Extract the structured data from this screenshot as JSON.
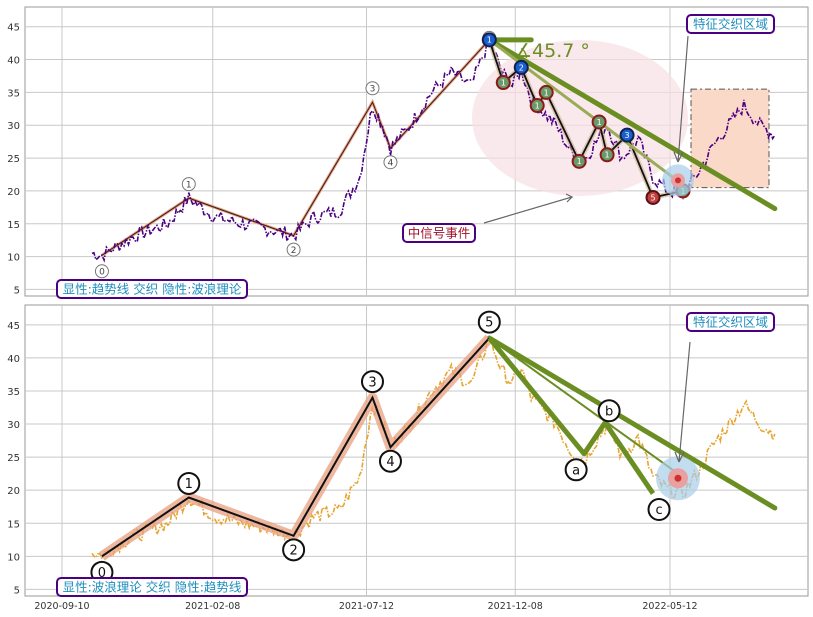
{
  "colors": {
    "grid": "#c8c8c8",
    "panel_border": "#9a9a9a",
    "top_price": "#4b0082",
    "bottom_price": "#e6a532",
    "wave_line": "#1a1a1a",
    "wave_glow": "#e8a080",
    "trend_green": "#6b8e23",
    "trend_light": "#9aab55",
    "label_text_blue": "#1f8fbf",
    "label_border_purple": "#4b0082",
    "signal_text_red": "#a0102a",
    "signal_border": "#5a1a3a",
    "zone_fill": "#fbd9c8",
    "ellipse_fill": "#f8e0e4"
  },
  "chart_data": [
    {
      "type": "line",
      "panel": "top",
      "ylim": [
        4,
        48
      ],
      "yticks": [
        5,
        10,
        15,
        20,
        25,
        30,
        35,
        40,
        45
      ],
      "ytick_labels": [
        "5",
        "10",
        "15",
        "20",
        "25",
        "30",
        "35",
        "40",
        "45"
      ],
      "price_anchors": {
        "x": [
          "2020-10-10",
          "2020-10-20",
          "2020-11-20",
          "2020-12-25",
          "2021-01-15",
          "2021-02-10",
          "2021-03-10",
          "2021-04-10",
          "2021-04-30",
          "2021-05-20",
          "2021-06-15",
          "2021-07-05",
          "2021-07-18",
          "2021-07-28",
          "2021-08-05",
          "2021-08-25",
          "2021-09-15",
          "2021-10-05",
          "2021-10-25",
          "2021-11-12",
          "2021-11-25",
          "2021-12-05",
          "2021-12-14",
          "2021-12-24",
          "2022-01-05",
          "2022-01-18",
          "2022-02-01",
          "2022-02-15",
          "2022-02-25",
          "2022-03-10",
          "2022-03-25",
          "2022-04-10",
          "2022-04-25",
          "2022-05-10",
          "2022-05-25",
          "2022-06-10",
          "2022-06-25",
          "2022-07-10",
          "2022-07-25",
          "2022-08-10",
          "2022-08-25"
        ],
        "y": [
          10.5,
          10.2,
          13,
          15,
          18.9,
          16,
          15,
          14,
          13.2,
          16,
          17,
          22,
          33,
          30,
          26.5,
          30,
          35,
          38,
          36,
          43,
          38,
          36,
          38.5,
          34,
          32,
          30,
          26,
          24.5,
          27,
          30,
          25,
          28,
          22,
          20,
          19.5,
          23,
          27,
          30,
          33,
          30,
          28.5
        ]
      },
      "wave_points": [
        {
          "label": "0",
          "x": "2020-10-20",
          "y": 10.2
        },
        {
          "label": "1",
          "x": "2021-01-15",
          "y": 18.9
        },
        {
          "label": "2",
          "x": "2021-04-30",
          "y": 13.2
        },
        {
          "label": "3",
          "x": "2021-07-18",
          "y": 33.5
        },
        {
          "label": "4",
          "x": "2021-08-05",
          "y": 26.5
        },
        {
          "label": "5",
          "x": "2021-11-12",
          "y": 43
        }
      ],
      "sub_wave_points": [
        {
          "label": "1",
          "x": "2021-11-12",
          "y": 43
        },
        {
          "label": "1",
          "x": "2021-11-26",
          "y": 36.5
        },
        {
          "label": "2",
          "x": "2021-12-14",
          "y": 38.8
        },
        {
          "label": "1",
          "x": "2021-12-30",
          "y": 33
        },
        {
          "label": "1",
          "x": "2022-01-08",
          "y": 35
        },
        {
          "label": "1",
          "x": "2022-02-10",
          "y": 24.5
        },
        {
          "label": "1",
          "x": "2022-03-02",
          "y": 30.5
        },
        {
          "label": "1",
          "x": "2022-03-10",
          "y": 25.5
        },
        {
          "label": "3",
          "x": "2022-03-30",
          "y": 28.5
        },
        {
          "label": "5",
          "x": "2022-04-25",
          "y": 19
        },
        {
          "label": "1",
          "x": "2022-05-25",
          "y": 20
        }
      ],
      "trend_lines": [
        {
          "from": {
            "x": "2021-11-12",
            "y": 43
          },
          "to": {
            "x": "2022-08-25",
            "y": 17.3
          },
          "width": "thick"
        },
        {
          "from": {
            "x": "2021-11-12",
            "y": 43
          },
          "to": {
            "x": "2021-12-24",
            "y": 43
          },
          "width": "thick"
        },
        {
          "from": {
            "x": "2021-11-12",
            "y": 43
          },
          "to": {
            "x": "2022-05-20",
            "y": 21.5
          },
          "width": "thin"
        }
      ],
      "angle_label": "∡45.7 °",
      "annotations": {
        "legend_label": "显性:趋势线 交织 隐性:波浪理论",
        "zone_label": "特征交织区域",
        "signal_label": "中信号事件"
      }
    },
    {
      "type": "line",
      "panel": "bottom",
      "ylim": [
        4,
        48
      ],
      "yticks": [
        5,
        10,
        15,
        20,
        25,
        30,
        35,
        40,
        45
      ],
      "ytick_labels": [
        "5",
        "10",
        "15",
        "20",
        "25",
        "30",
        "35",
        "40",
        "45"
      ],
      "xticks": [
        "2020-09-10",
        "2021-02-08",
        "2021-07-12",
        "2021-12-08",
        "2022-05-12"
      ],
      "xtick_labels": [
        "2020-09-10",
        "2021-02-08",
        "2021-07-12",
        "2021-12-08",
        "2022-05-12"
      ],
      "wave_points": [
        {
          "label": "0",
          "x": "2020-10-20",
          "y": 10
        },
        {
          "label": "1",
          "x": "2021-01-15",
          "y": 18.9
        },
        {
          "label": "2",
          "x": "2021-04-30",
          "y": 13.1
        },
        {
          "label": "3",
          "x": "2021-07-18",
          "y": 34
        },
        {
          "label": "4",
          "x": "2021-08-05",
          "y": 26.5
        },
        {
          "label": "5",
          "x": "2021-11-12",
          "y": 43
        },
        {
          "label": "a",
          "x": "2022-02-15",
          "y": 25.5
        },
        {
          "label": "b",
          "x": "2022-03-08",
          "y": 30.2
        },
        {
          "label": "c",
          "x": "2022-04-25",
          "y": 19.5
        }
      ],
      "trend_lines": [
        {
          "from": {
            "x": "2021-11-12",
            "y": 43
          },
          "to": {
            "x": "2022-08-25",
            "y": 17.3
          },
          "width": "thick"
        },
        {
          "from": {
            "x": "2021-11-12",
            "y": 43
          },
          "to": {
            "x": "2022-05-20",
            "y": 22.5
          },
          "width": "thin"
        }
      ],
      "annotations": {
        "legend_label": "显性:波浪理论 交织 隐性:趋势线",
        "zone_label": "特征交织区域"
      }
    }
  ]
}
